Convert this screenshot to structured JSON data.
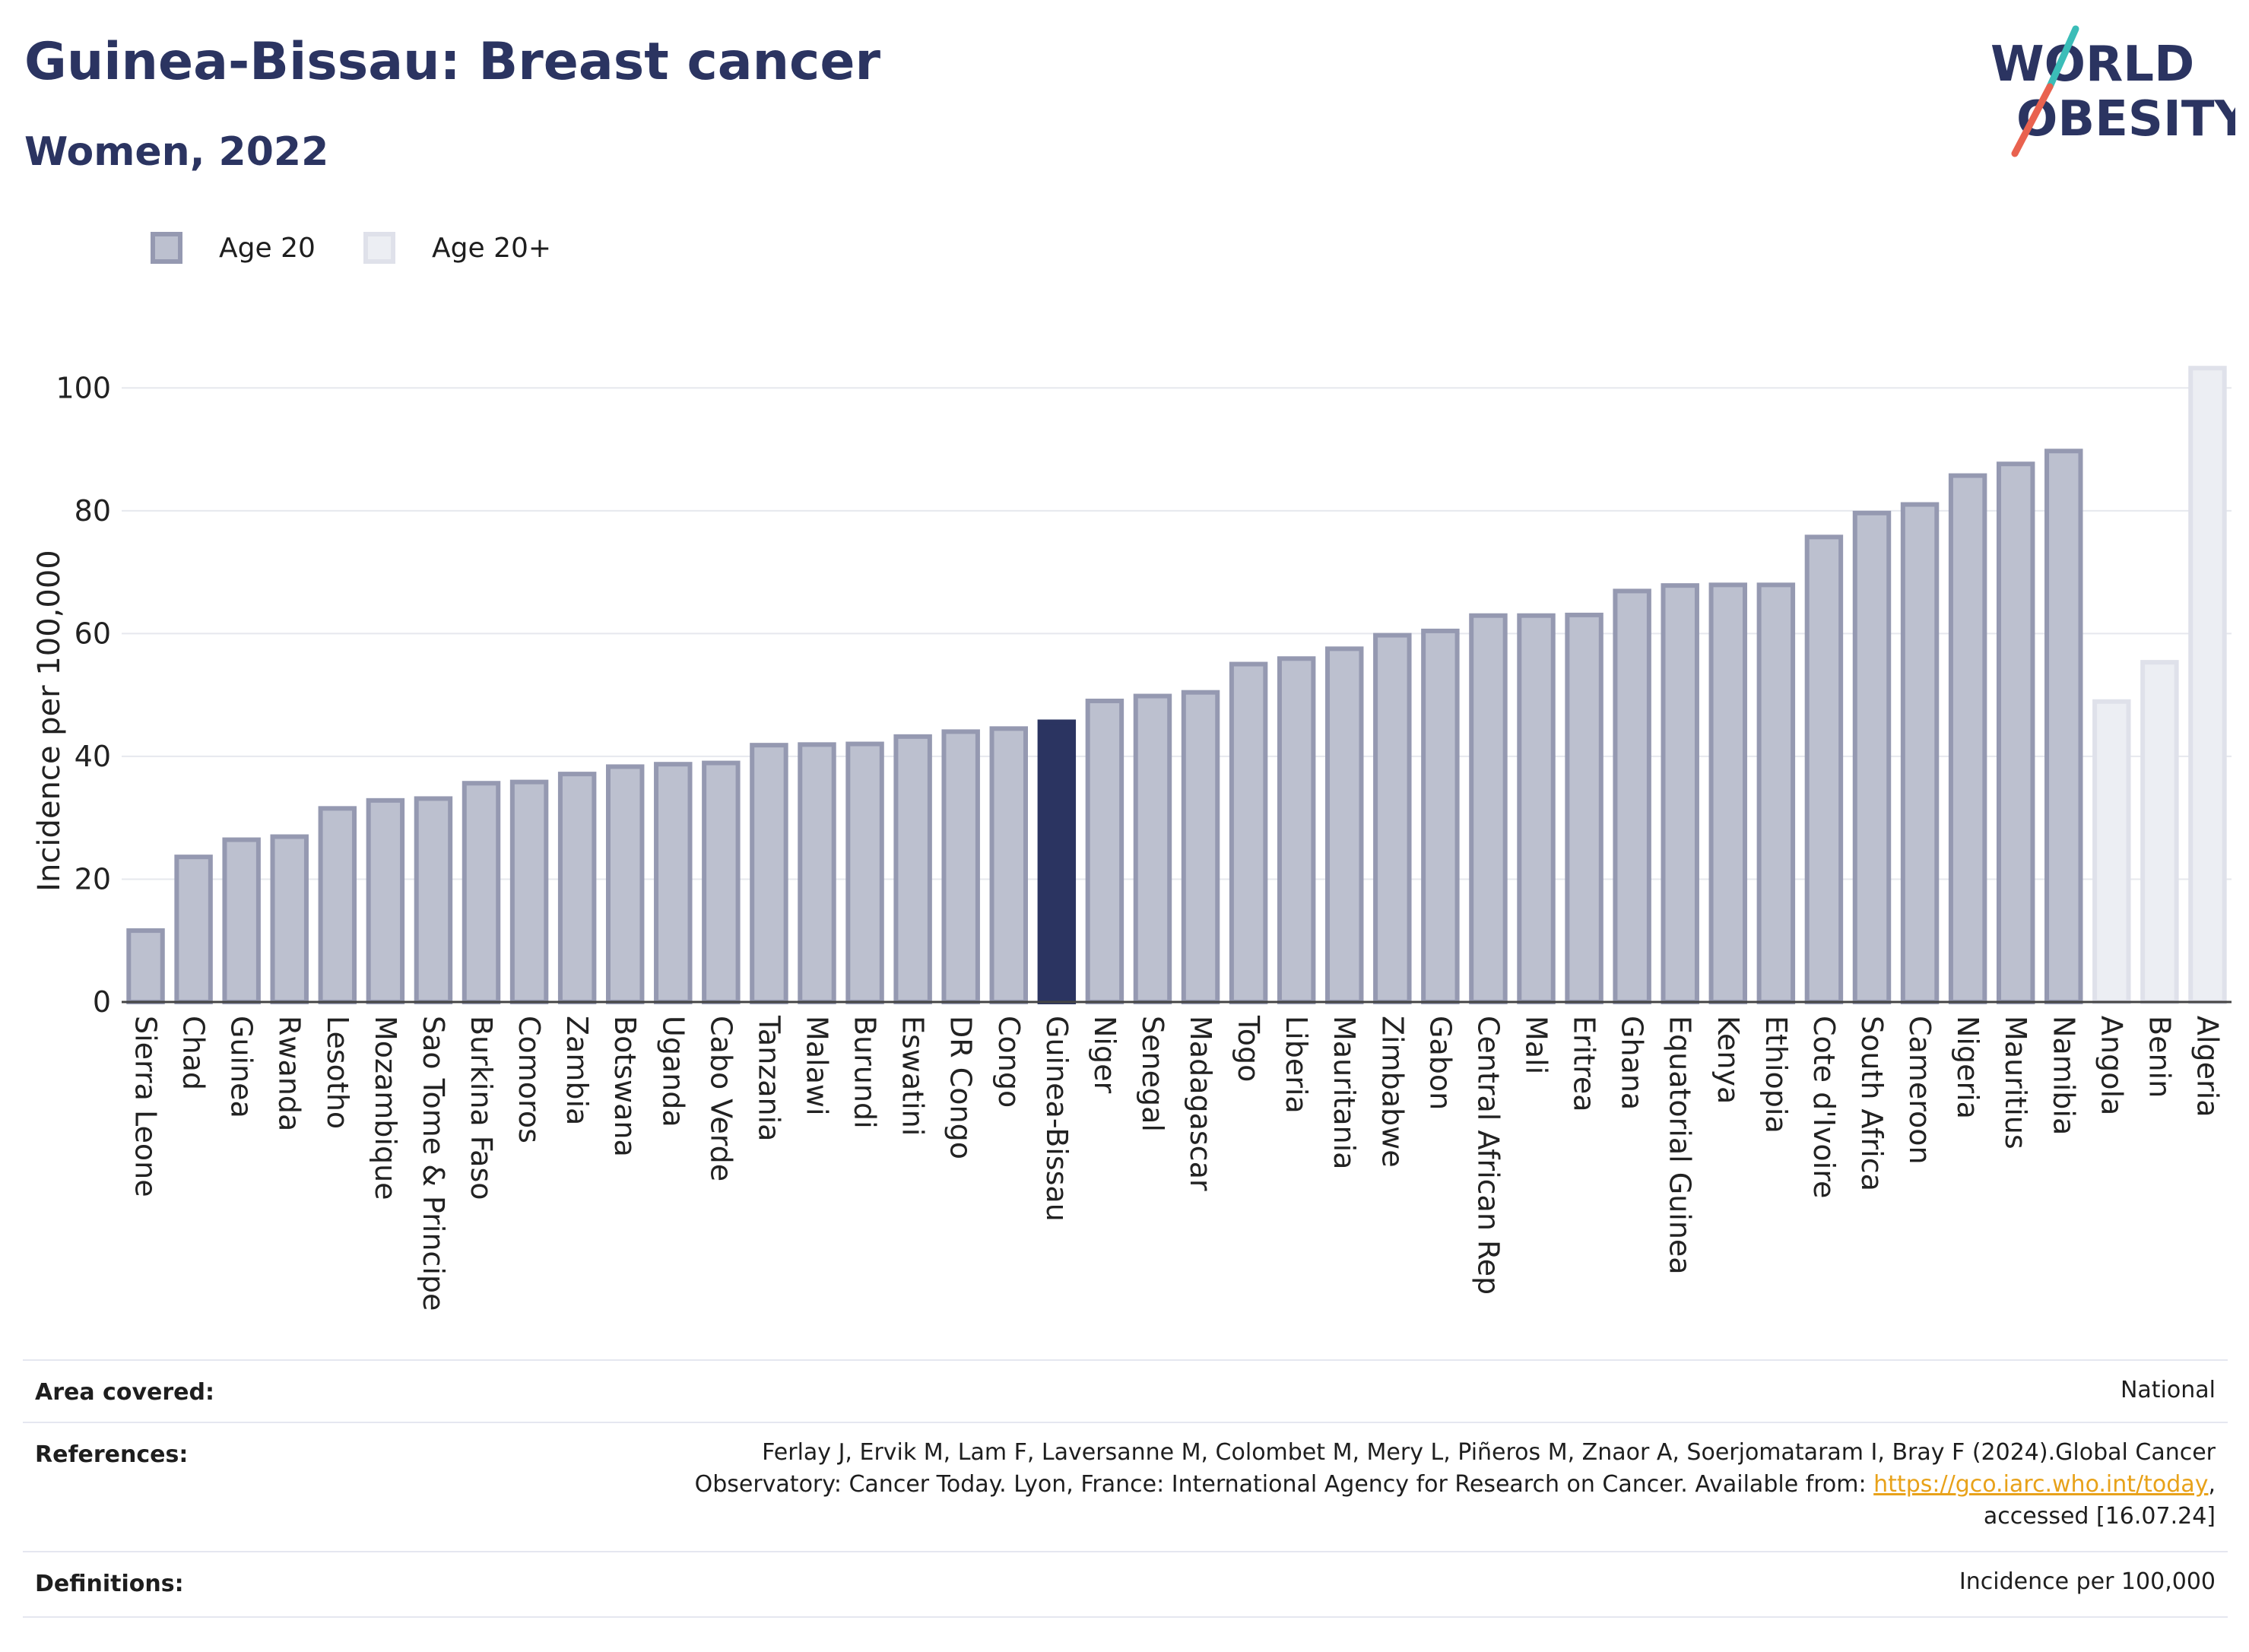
{
  "header": {
    "title": "Guinea-Bissau: Breast cancer",
    "subtitle": "Women, 2022"
  },
  "logo": {
    "line1": "WORLD",
    "line2": "OBESITY",
    "colors": {
      "text": "#2b3461",
      "slash1": "#3bbdb8",
      "slash2": "#e9624f"
    }
  },
  "legend": [
    {
      "label": "Age 20",
      "color": "#bcc0cf",
      "border": "#9599b1"
    },
    {
      "label": "Age 20+",
      "color": "#eceef3",
      "border": "#dfe1ea"
    }
  ],
  "chart_data": {
    "type": "bar",
    "ylabel": "Incidence per 100,000",
    "xlabel": "",
    "ylim": [
      0,
      104
    ],
    "yticks": [
      0,
      20,
      40,
      60,
      80,
      100
    ],
    "grid": true,
    "highlight": "Guinea-Bissau",
    "colors": {
      "age20": "#bcc0cf",
      "age20_border": "#9599b1",
      "age20plus": "#eceef3",
      "age20plus_border": "#dfe1ea",
      "highlight": "#2b3461"
    },
    "categories": [
      "Sierra Leone",
      "Chad",
      "Guinea",
      "Rwanda",
      "Lesotho",
      "Mozambique",
      "Sao Tome & Principe",
      "Burkina Faso",
      "Comoros",
      "Zambia",
      "Botswana",
      "Uganda",
      "Cabo Verde",
      "Tanzania",
      "Malawi",
      "Burundi",
      "Eswatini",
      "DR Congo",
      "Congo",
      "Guinea-Bissau",
      "Niger",
      "Senegal",
      "Madagascar",
      "Togo",
      "Liberia",
      "Mauritania",
      "Zimbabwe",
      "Gabon",
      "Central African Rep",
      "Mali",
      "Eritrea",
      "Ghana",
      "Equatorial Guinea",
      "Kenya",
      "Ethiopia",
      "Cote d'Ivoire",
      "South Africa",
      "Cameroon",
      "Nigeria",
      "Mauritius",
      "Namibia",
      "Angola",
      "Benin",
      "Algeria"
    ],
    "values": [
      12.0,
      24.0,
      26.8,
      27.3,
      31.9,
      33.2,
      33.5,
      36.0,
      36.2,
      37.5,
      38.7,
      39.1,
      39.3,
      42.2,
      42.3,
      42.4,
      43.6,
      44.4,
      44.9,
      46.0,
      49.4,
      50.2,
      50.8,
      55.4,
      56.3,
      57.9,
      60.1,
      60.8,
      63.3,
      63.3,
      63.4,
      67.3,
      68.2,
      68.3,
      68.3,
      76.1,
      80.0,
      81.4,
      86.1,
      88.0,
      90.1,
      49.3,
      55.7,
      103.6
    ],
    "groups": [
      "Age 20",
      "Age 20",
      "Age 20",
      "Age 20",
      "Age 20",
      "Age 20",
      "Age 20",
      "Age 20",
      "Age 20",
      "Age 20",
      "Age 20",
      "Age 20",
      "Age 20",
      "Age 20",
      "Age 20",
      "Age 20",
      "Age 20",
      "Age 20",
      "Age 20",
      "Age 20",
      "Age 20",
      "Age 20",
      "Age 20",
      "Age 20",
      "Age 20",
      "Age 20",
      "Age 20",
      "Age 20",
      "Age 20",
      "Age 20",
      "Age 20",
      "Age 20",
      "Age 20",
      "Age 20",
      "Age 20",
      "Age 20",
      "Age 20",
      "Age 20",
      "Age 20",
      "Age 20",
      "Age 20",
      "Age 20+",
      "Age 20+",
      "Age 20+"
    ]
  },
  "meta": {
    "area_label": "Area covered:",
    "area_value": "National",
    "references_label": "References:",
    "references_line1": "Ferlay J, Ervik M, Lam F, Laversanne M, Colombet M, Mery L, Piñeros M, Znaor A, Soerjomataram I, Bray F (2024).Global Cancer",
    "references_line2_pre": "Observatory: Cancer Today. Lyon, France: International Agency for Research on Cancer. Available from: ",
    "references_link": "https://gco.iarc.who.int/today",
    "references_line2_post": ",",
    "references_line3": "accessed [16.07.24]",
    "definitions_label": "Definitions:",
    "definitions_value": "Incidence per 100,000"
  }
}
